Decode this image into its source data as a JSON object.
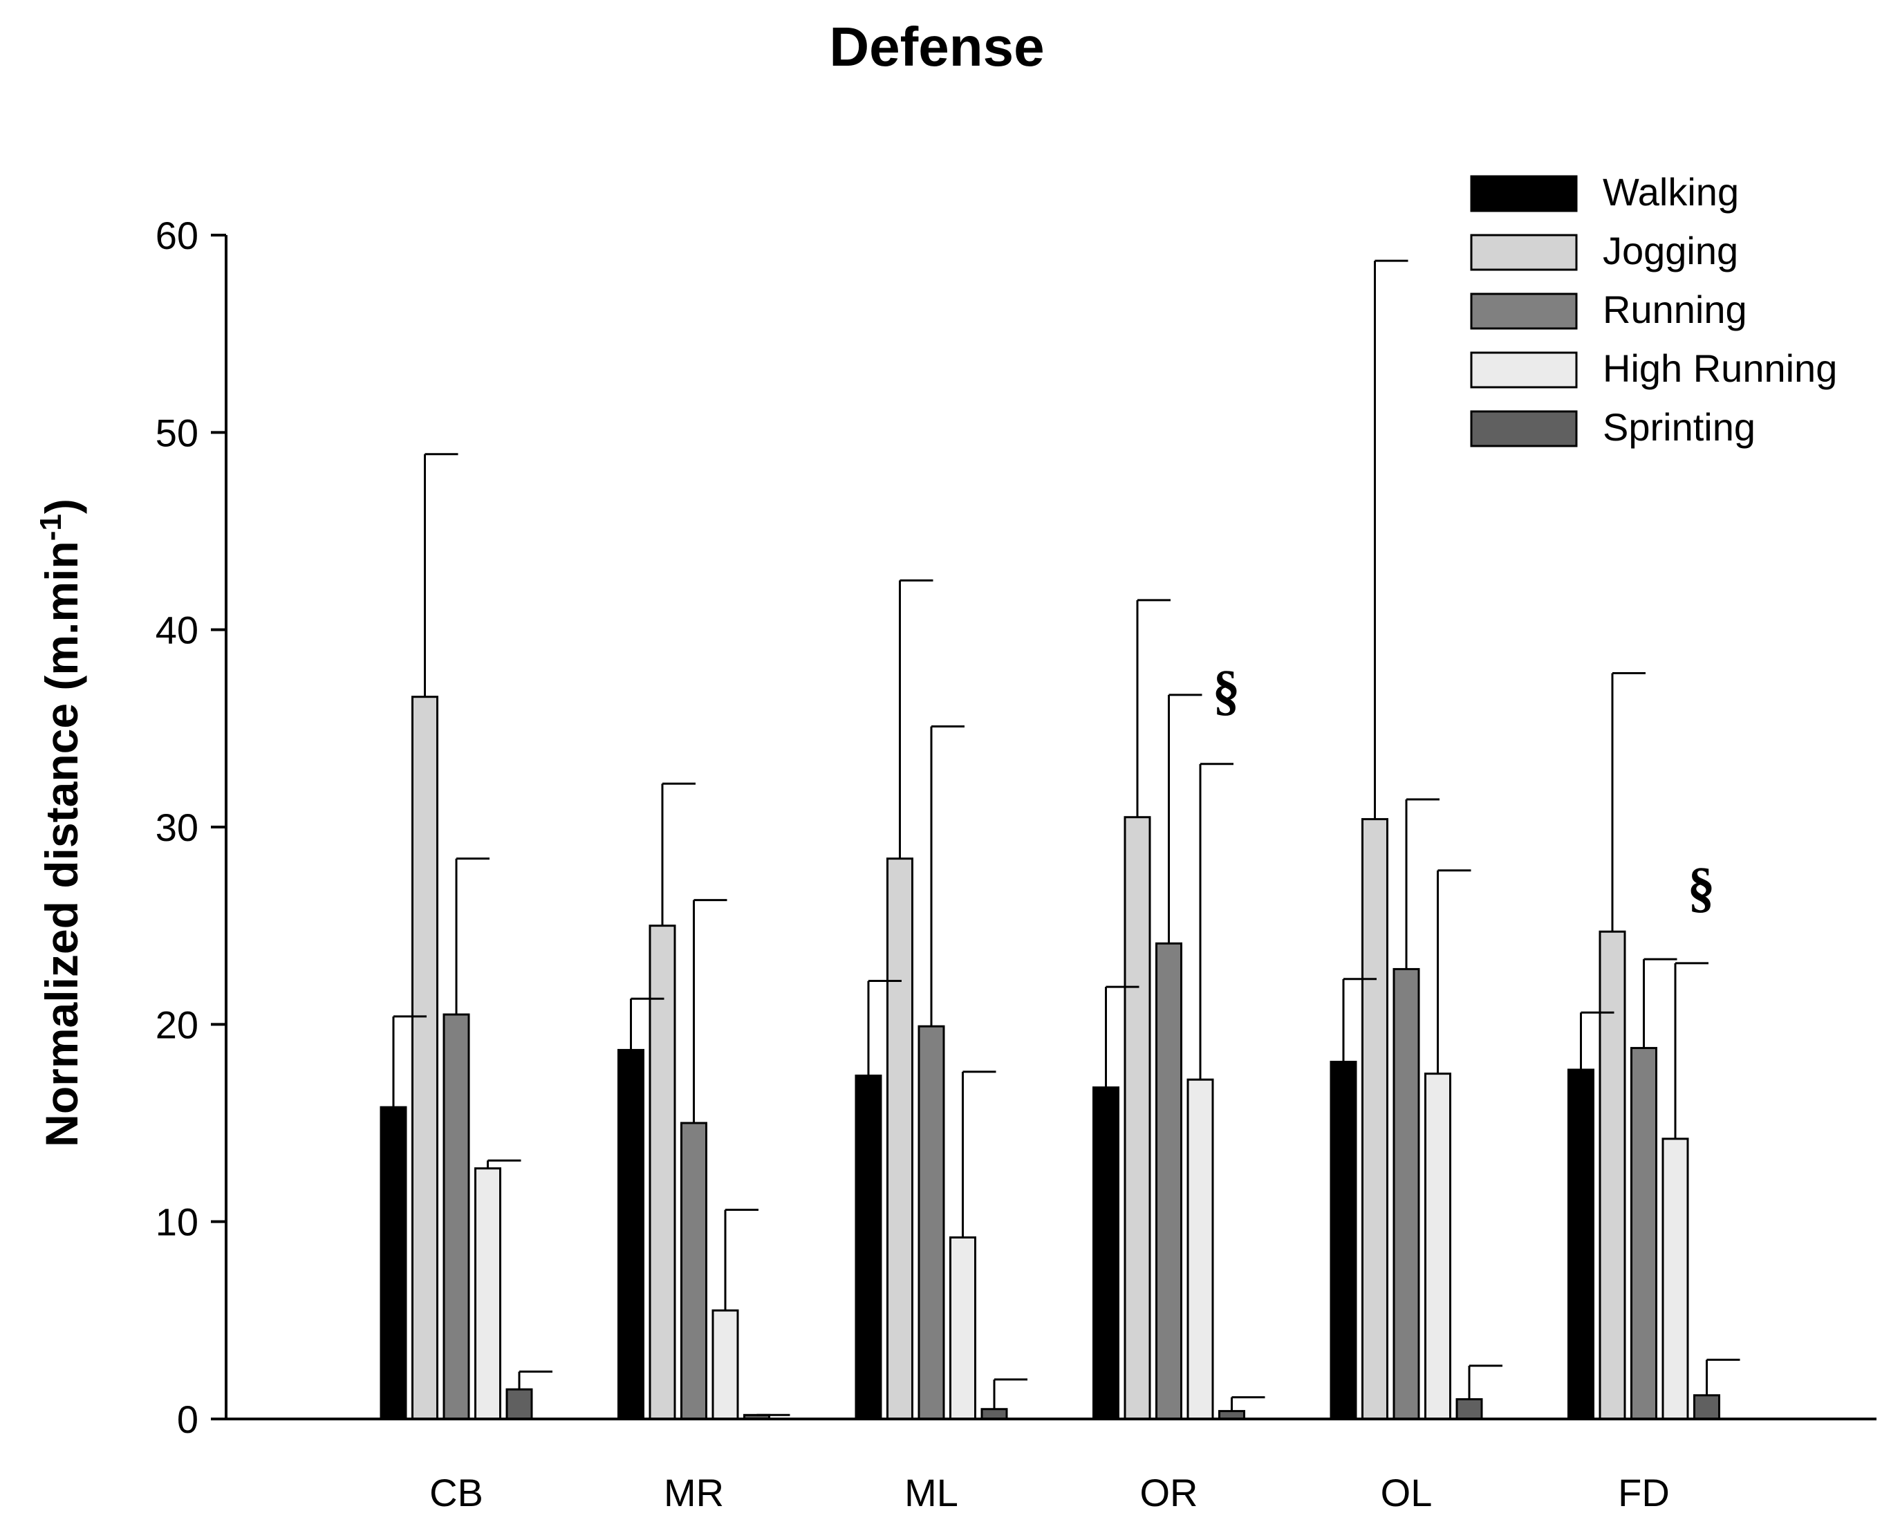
{
  "chart_data": {
    "type": "bar",
    "title": "Defense",
    "xlabel": "",
    "ylabel": "Normalized distance (m.min",
    "ylabel_superscript": "-1",
    "ylabel_close": ")",
    "ylim": [
      0,
      60
    ],
    "yticks": [
      0,
      10,
      20,
      30,
      40,
      50,
      60
    ],
    "grid": false,
    "legend_position": "top-right",
    "categories": [
      "CB",
      "MR",
      "ML",
      "OR",
      "OL",
      "FD"
    ],
    "series": [
      {
        "name": "Walking",
        "color": "#000000",
        "values": [
          15.8,
          18.7,
          17.4,
          16.8,
          18.1,
          17.7
        ],
        "errors": [
          4.6,
          2.6,
          4.8,
          5.1,
          4.2,
          2.9
        ]
      },
      {
        "name": "Jogging",
        "color": "#d3d3d3",
        "values": [
          36.6,
          25.0,
          28.4,
          30.5,
          30.4,
          24.7
        ],
        "errors": [
          12.3,
          7.2,
          14.1,
          11.0,
          28.3,
          13.1
        ]
      },
      {
        "name": "Running",
        "color": "#808080",
        "values": [
          20.5,
          15.0,
          19.9,
          24.1,
          22.8,
          18.8
        ],
        "errors": [
          7.9,
          11.3,
          15.2,
          12.6,
          8.6,
          4.5
        ]
      },
      {
        "name": "High Running",
        "color": "#ebebeb",
        "values": [
          12.7,
          5.5,
          9.2,
          17.2,
          17.5,
          14.2
        ],
        "errors": [
          0.4,
          5.1,
          8.4,
          16.0,
          10.3,
          8.9
        ]
      },
      {
        "name": "Sprinting",
        "color": "#606060",
        "values": [
          1.5,
          0.2,
          0.5,
          0.4,
          1.0,
          1.2
        ],
        "errors": [
          0.9,
          0.0,
          1.5,
          0.7,
          1.7,
          1.8
        ]
      }
    ],
    "annotations": [
      {
        "text": "§",
        "category": "OR",
        "y": 36
      },
      {
        "text": "§",
        "category": "FD",
        "y": 26
      }
    ]
  }
}
